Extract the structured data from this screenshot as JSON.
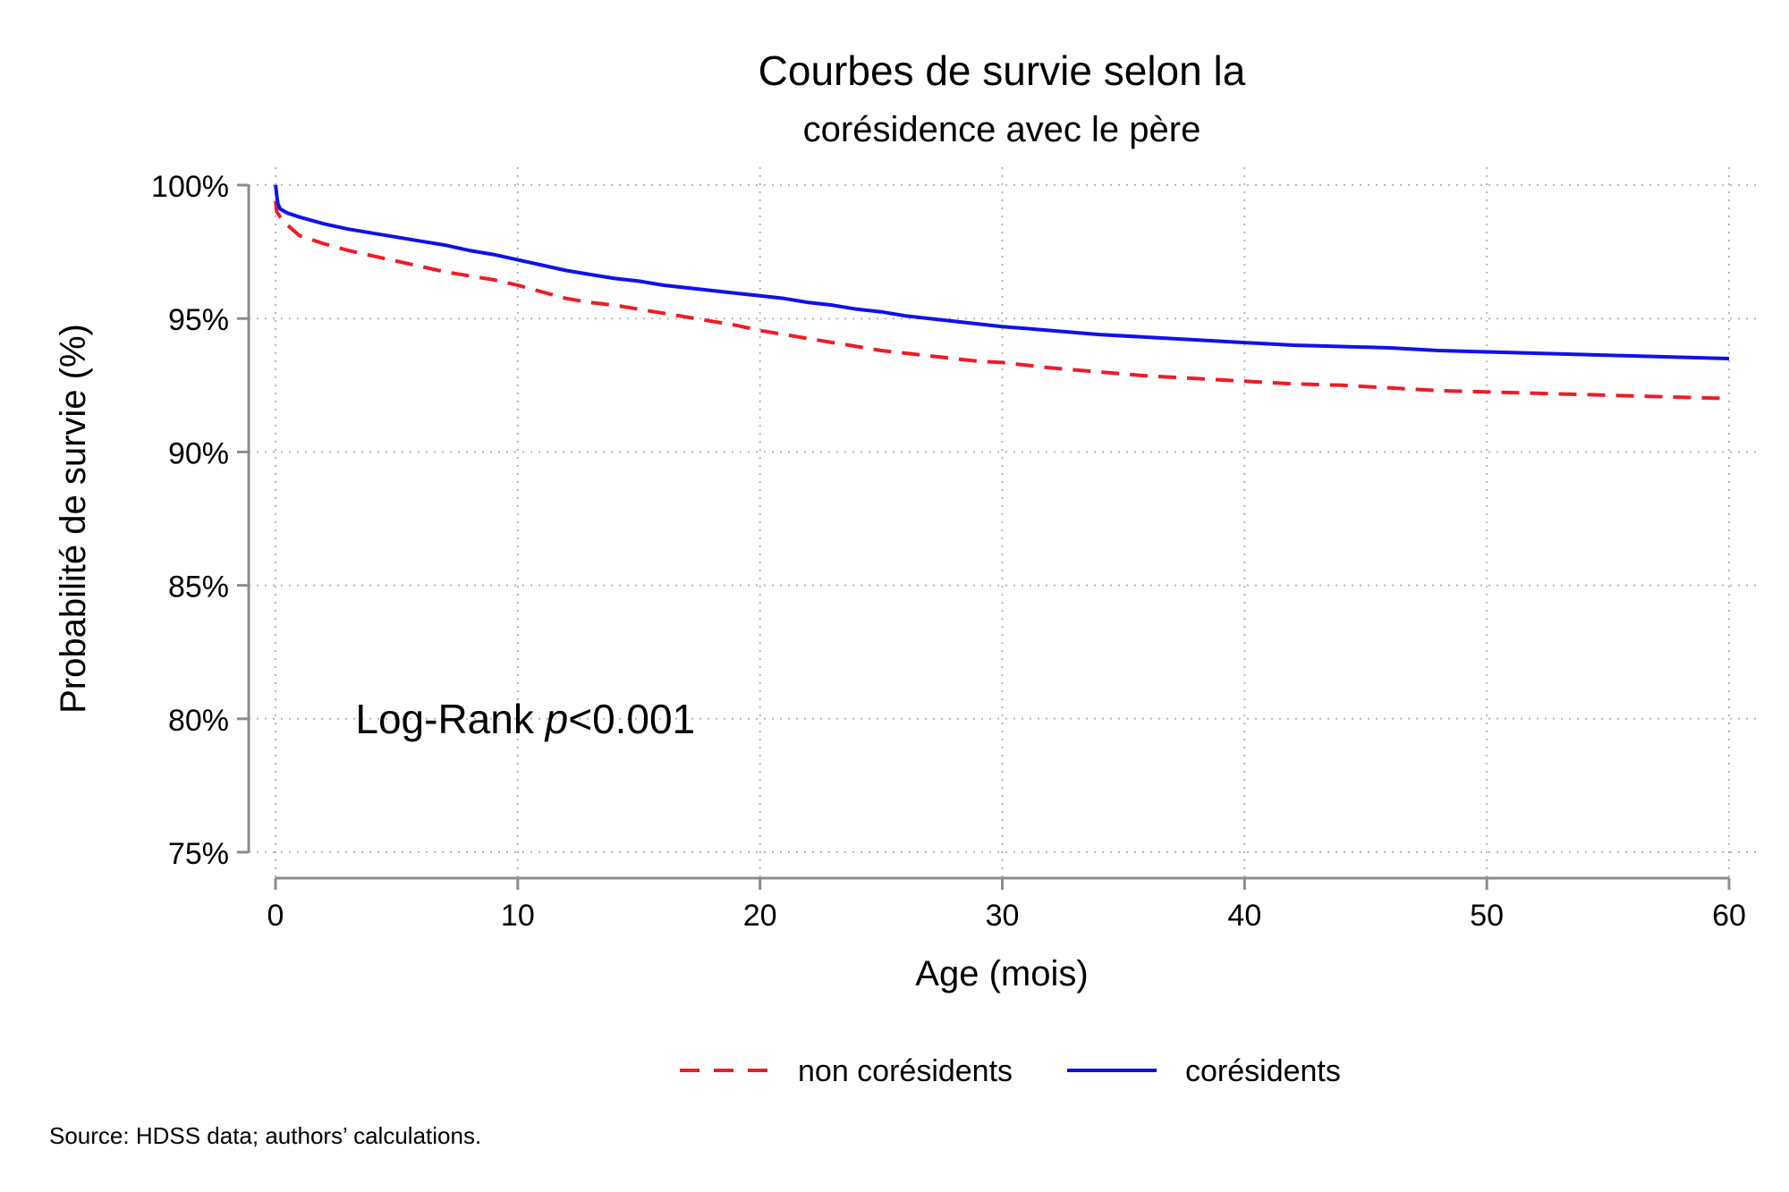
{
  "source_note": "Source: HDSS data; authors’ calculations.",
  "chart_data": {
    "type": "line",
    "title": "Courbes de survie selon la",
    "subtitle": "corésidence avec le père",
    "xlabel": "Age (mois)",
    "ylabel": "Probabilité de survie (%)",
    "xlim": [
      0,
      60
    ],
    "ylim": [
      75,
      100
    ],
    "x_ticks": [
      0,
      10,
      20,
      30,
      40,
      50,
      60
    ],
    "x_tick_labels": [
      "0",
      "10",
      "20",
      "30",
      "40",
      "50",
      "60"
    ],
    "y_ticks": [
      75,
      80,
      85,
      90,
      95,
      100
    ],
    "y_tick_labels": [
      "75%",
      "80%",
      "85%",
      "90%",
      "95%",
      "100%"
    ],
    "grid": true,
    "legend_position": "bottom",
    "annotation": {
      "prefix": "Log-Rank ",
      "italic": "p",
      "suffix": "<0.001",
      "x": 3.3,
      "y": 80
    },
    "series": [
      {
        "name": "non corésidents",
        "color": "#ee1c25",
        "dash": true,
        "x": [
          0,
          0.05,
          0.2,
          0.5,
          1,
          2,
          3,
          4,
          5,
          6,
          7,
          8,
          9,
          10,
          11,
          12,
          13,
          14,
          15,
          16,
          17,
          18,
          19,
          20,
          21,
          22,
          23,
          24,
          25,
          26,
          27,
          28,
          29,
          30,
          32,
          34,
          36,
          38,
          40,
          42,
          44,
          46,
          48,
          50,
          52,
          54,
          56,
          58,
          60
        ],
        "y": [
          99.4,
          99.0,
          98.8,
          98.5,
          98.1,
          97.8,
          97.55,
          97.35,
          97.15,
          96.95,
          96.75,
          96.6,
          96.45,
          96.25,
          96.0,
          95.75,
          95.6,
          95.5,
          95.35,
          95.2,
          95.05,
          94.9,
          94.75,
          94.55,
          94.4,
          94.25,
          94.1,
          93.95,
          93.8,
          93.7,
          93.6,
          93.5,
          93.4,
          93.35,
          93.15,
          93.0,
          92.85,
          92.75,
          92.65,
          92.55,
          92.5,
          92.4,
          92.3,
          92.25,
          92.2,
          92.15,
          92.1,
          92.05,
          92.0
        ]
      },
      {
        "name": "corésidents",
        "color": "#1010ee",
        "dash": false,
        "x": [
          0,
          0.02,
          0.05,
          0.1,
          0.2,
          0.5,
          1,
          2,
          3,
          4,
          5,
          6,
          7,
          8,
          9,
          10,
          11,
          12,
          13,
          14,
          15,
          16,
          17,
          18,
          19,
          20,
          21,
          22,
          23,
          24,
          25,
          26,
          27,
          28,
          29,
          30,
          32,
          34,
          36,
          38,
          40,
          42,
          44,
          46,
          48,
          50,
          52,
          54,
          56,
          58,
          60
        ],
        "y": [
          100,
          99.9,
          99.6,
          99.3,
          99.1,
          98.95,
          98.8,
          98.55,
          98.35,
          98.2,
          98.05,
          97.9,
          97.75,
          97.55,
          97.4,
          97.2,
          97.0,
          96.8,
          96.65,
          96.5,
          96.4,
          96.25,
          96.15,
          96.05,
          95.95,
          95.85,
          95.75,
          95.6,
          95.5,
          95.35,
          95.25,
          95.1,
          95.0,
          94.9,
          94.8,
          94.7,
          94.55,
          94.4,
          94.3,
          94.2,
          94.1,
          94.0,
          93.95,
          93.9,
          93.8,
          93.75,
          93.7,
          93.65,
          93.6,
          93.55,
          93.5
        ]
      }
    ]
  }
}
